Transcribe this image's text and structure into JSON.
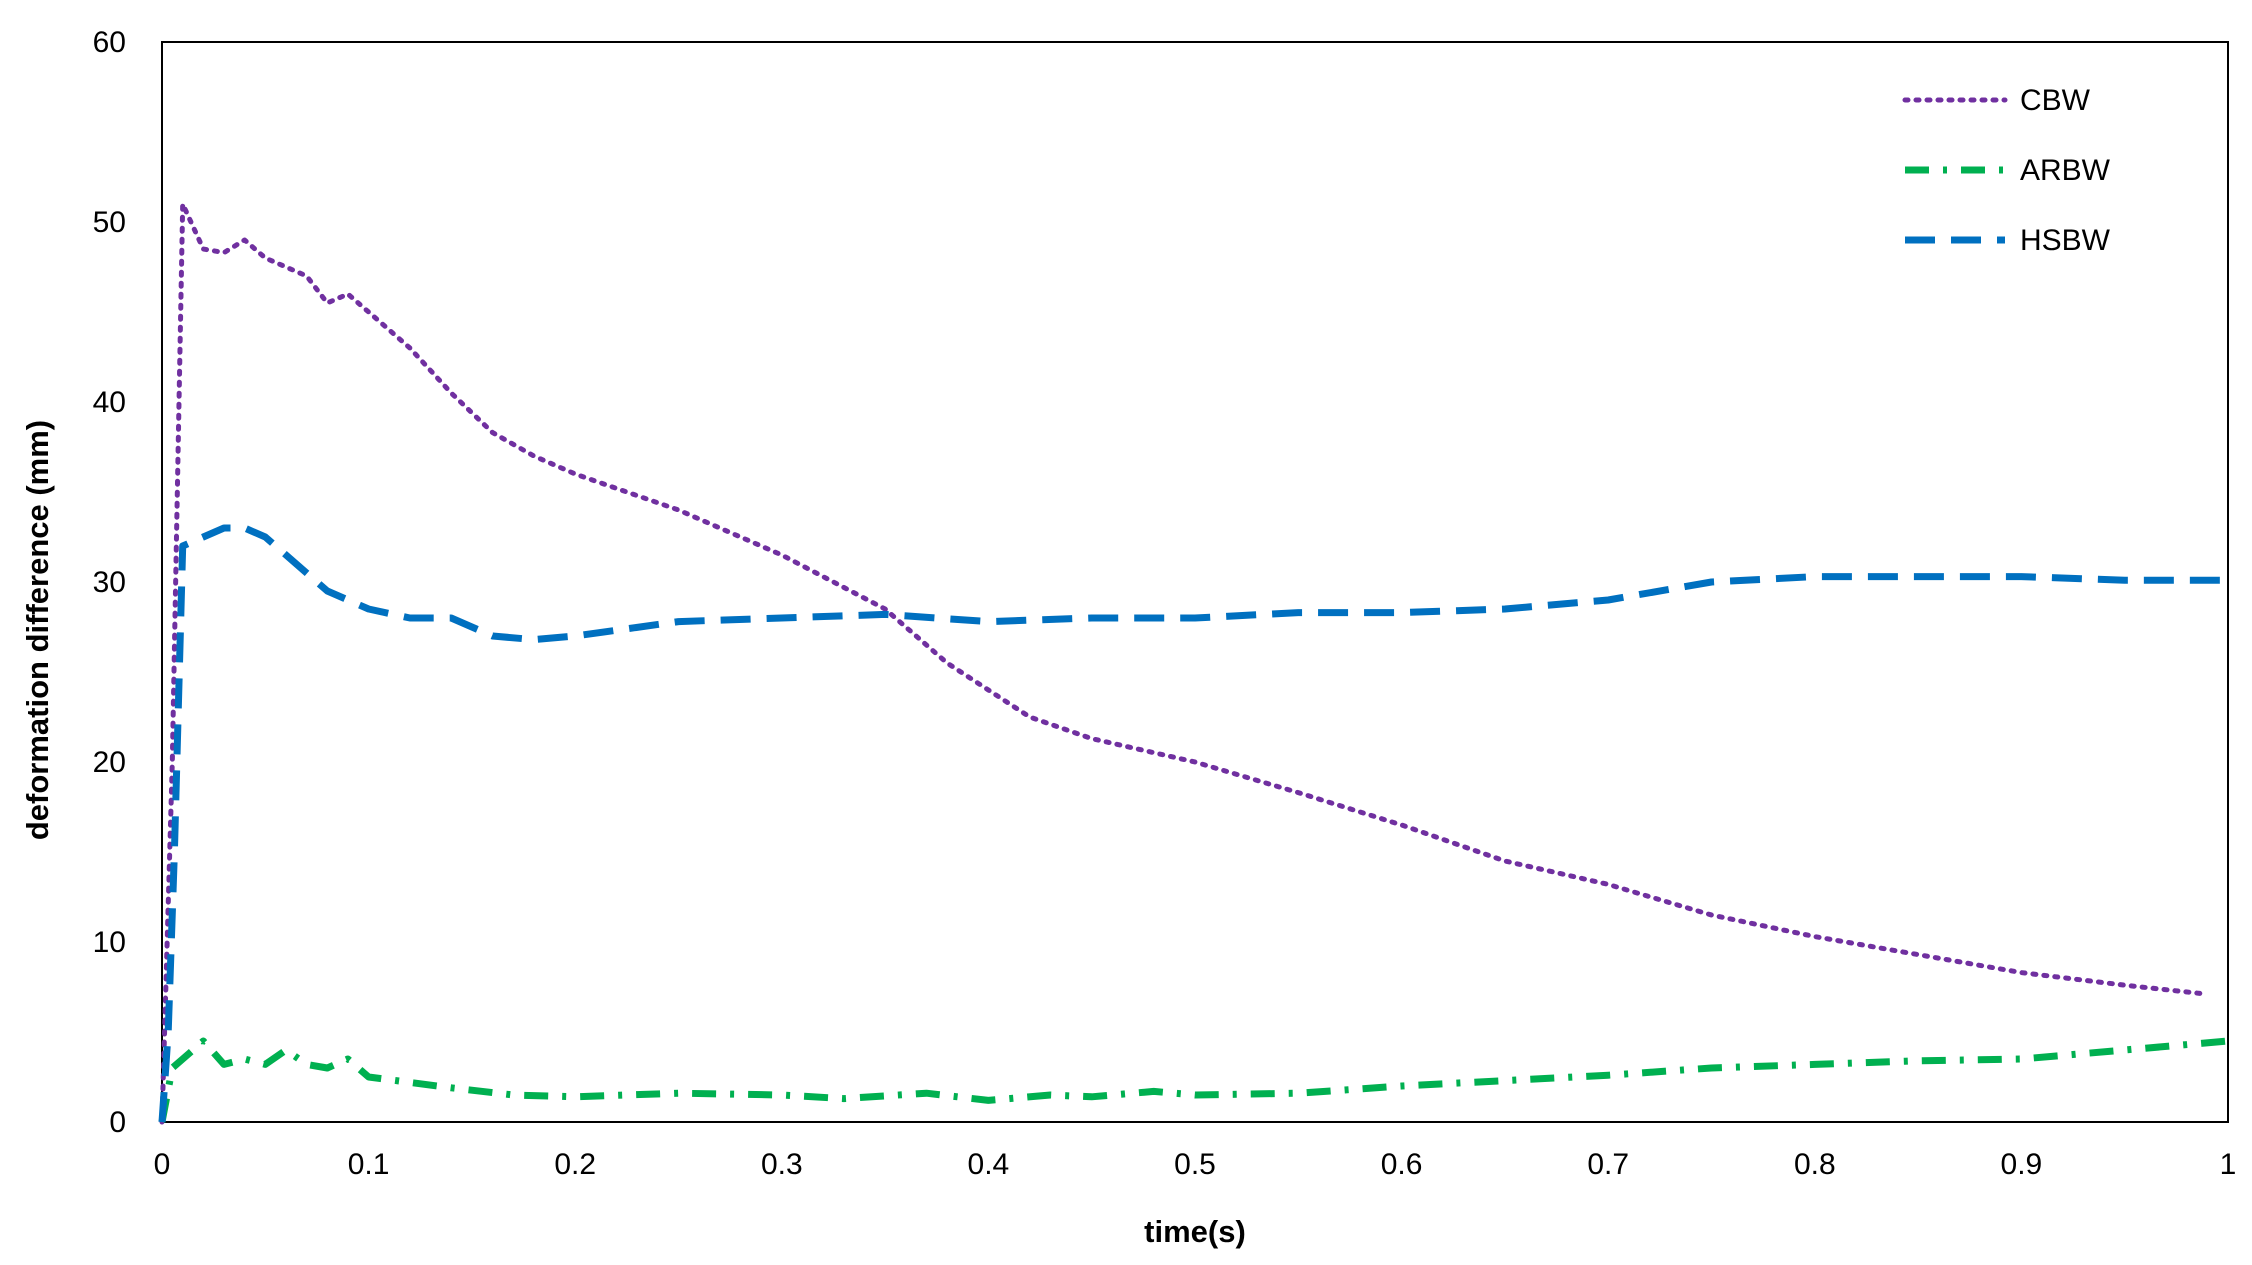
{
  "chart_data": {
    "type": "line",
    "title": "",
    "xlabel": "time(s)",
    "ylabel": "deformation difference (mm)",
    "xlim": [
      0,
      1
    ],
    "ylim": [
      0,
      60
    ],
    "xticks": [
      "0",
      "0.1",
      "0.2",
      "0.3",
      "0.4",
      "0.5",
      "0.6",
      "0.7",
      "0.8",
      "0.9",
      "1"
    ],
    "yticks": [
      "0",
      "10",
      "20",
      "30",
      "40",
      "50",
      "60"
    ],
    "grid": false,
    "legend_position": "top-right",
    "series": [
      {
        "name": "CBW",
        "color": "#7030A0",
        "style": "dotted",
        "points": [
          [
            0,
            0
          ],
          [
            0.005,
            20
          ],
          [
            0.01,
            51
          ],
          [
            0.02,
            48.5
          ],
          [
            0.03,
            48.3
          ],
          [
            0.04,
            49
          ],
          [
            0.05,
            48
          ],
          [
            0.07,
            47
          ],
          [
            0.08,
            45.5
          ],
          [
            0.09,
            46
          ],
          [
            0.1,
            45
          ],
          [
            0.12,
            43
          ],
          [
            0.14,
            40.5
          ],
          [
            0.16,
            38.3
          ],
          [
            0.18,
            37
          ],
          [
            0.2,
            36
          ],
          [
            0.25,
            34
          ],
          [
            0.3,
            31.5
          ],
          [
            0.35,
            28.5
          ],
          [
            0.38,
            25.5
          ],
          [
            0.4,
            24
          ],
          [
            0.42,
            22.5
          ],
          [
            0.45,
            21.3
          ],
          [
            0.5,
            20
          ],
          [
            0.55,
            18.3
          ],
          [
            0.6,
            16.5
          ],
          [
            0.65,
            14.5
          ],
          [
            0.7,
            13.2
          ],
          [
            0.75,
            11.5
          ],
          [
            0.8,
            10.3
          ],
          [
            0.85,
            9.3
          ],
          [
            0.9,
            8.3
          ],
          [
            0.95,
            7.6
          ],
          [
            0.99,
            7.1
          ]
        ]
      },
      {
        "name": "ARBW",
        "color": "#00B050",
        "style": "dash-dot",
        "points": [
          [
            0,
            0
          ],
          [
            0.005,
            3
          ],
          [
            0.01,
            3.5
          ],
          [
            0.02,
            4.5
          ],
          [
            0.03,
            3.2
          ],
          [
            0.04,
            3.5
          ],
          [
            0.05,
            3.2
          ],
          [
            0.06,
            4
          ],
          [
            0.07,
            3.2
          ],
          [
            0.08,
            3
          ],
          [
            0.09,
            3.5
          ],
          [
            0.1,
            2.5
          ],
          [
            0.12,
            2.2
          ],
          [
            0.14,
            1.9
          ],
          [
            0.17,
            1.5
          ],
          [
            0.2,
            1.4
          ],
          [
            0.25,
            1.6
          ],
          [
            0.3,
            1.5
          ],
          [
            0.33,
            1.3
          ],
          [
            0.37,
            1.6
          ],
          [
            0.4,
            1.2
          ],
          [
            0.43,
            1.5
          ],
          [
            0.45,
            1.4
          ],
          [
            0.48,
            1.7
          ],
          [
            0.5,
            1.5
          ],
          [
            0.55,
            1.6
          ],
          [
            0.6,
            2
          ],
          [
            0.65,
            2.3
          ],
          [
            0.7,
            2.6
          ],
          [
            0.75,
            3
          ],
          [
            0.8,
            3.2
          ],
          [
            0.85,
            3.4
          ],
          [
            0.9,
            3.5
          ],
          [
            0.95,
            4
          ],
          [
            1,
            4.5
          ]
        ]
      },
      {
        "name": "HSBW",
        "color": "#0070C0",
        "style": "dashed",
        "points": [
          [
            0,
            0
          ],
          [
            0.003,
            5
          ],
          [
            0.006,
            15
          ],
          [
            0.01,
            32
          ],
          [
            0.02,
            32.5
          ],
          [
            0.03,
            33
          ],
          [
            0.04,
            33
          ],
          [
            0.05,
            32.5
          ],
          [
            0.06,
            31.5
          ],
          [
            0.08,
            29.5
          ],
          [
            0.1,
            28.5
          ],
          [
            0.12,
            28
          ],
          [
            0.14,
            28
          ],
          [
            0.16,
            27
          ],
          [
            0.18,
            26.8
          ],
          [
            0.2,
            27
          ],
          [
            0.25,
            27.8
          ],
          [
            0.3,
            28
          ],
          [
            0.35,
            28.2
          ],
          [
            0.4,
            27.8
          ],
          [
            0.45,
            28
          ],
          [
            0.5,
            28
          ],
          [
            0.55,
            28.3
          ],
          [
            0.6,
            28.3
          ],
          [
            0.65,
            28.5
          ],
          [
            0.7,
            29
          ],
          [
            0.75,
            30
          ],
          [
            0.8,
            30.3
          ],
          [
            0.85,
            30.3
          ],
          [
            0.9,
            30.3
          ],
          [
            0.95,
            30.1
          ],
          [
            1,
            30.1
          ]
        ]
      }
    ]
  }
}
